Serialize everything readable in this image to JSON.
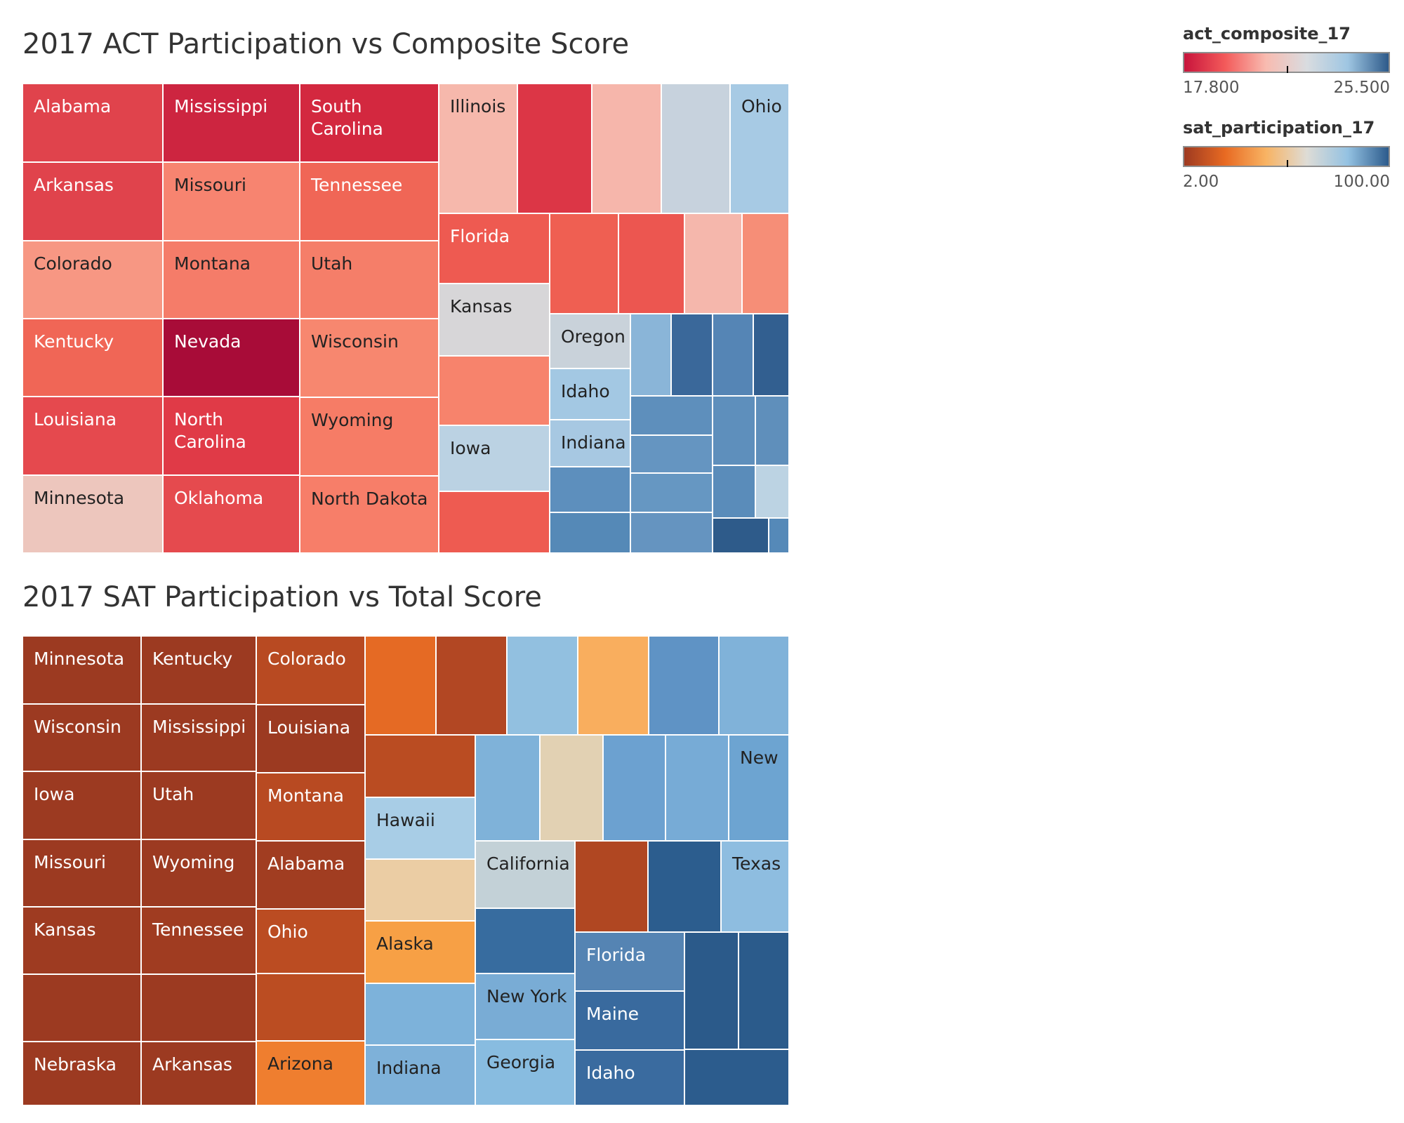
{
  "chart_data": [
    {
      "type": "treemap",
      "title": "2017 ACT Participation vs Composite Score",
      "size_field": "act_participation_17",
      "color_field": "act_composite_17",
      "tiles": [
        {
          "label": "Alabama",
          "color": "#e0434c"
        },
        {
          "label": "Arkansas",
          "color": "#e0434c"
        },
        {
          "label": "Colorado",
          "color": "#f79783"
        },
        {
          "label": "Kentucky",
          "color": "#f06656"
        },
        {
          "label": "Louisiana",
          "color": "#e5494e"
        },
        {
          "label": "Minnesota",
          "color": "#edc6bd"
        },
        {
          "label": "Mississippi",
          "color": "#cd2540"
        },
        {
          "label": "Missouri",
          "color": "#f78470"
        },
        {
          "label": "Montana",
          "color": "#f57c69"
        },
        {
          "label": "Nevada",
          "color": "#a80c38"
        },
        {
          "label": "North Carolina",
          "color": "#e03a47"
        },
        {
          "label": "Oklahoma",
          "color": "#e54a4e"
        },
        {
          "label": "South Carolina",
          "color": "#d3283f"
        },
        {
          "label": "Tennessee",
          "color": "#f06656"
        },
        {
          "label": "Utah",
          "color": "#f57e69"
        },
        {
          "label": "Wisconsin",
          "color": "#f7876f"
        },
        {
          "label": "Wyoming",
          "color": "#f67c66"
        },
        {
          "label": "North Dakota",
          "color": "#f77e69"
        },
        {
          "label": "Illinois",
          "color": "#f6b8ac"
        },
        {
          "label": "",
          "color": "#dc3646"
        },
        {
          "label": "",
          "color": "#f6b6ab"
        },
        {
          "label": "",
          "color": "#c7d2dd"
        },
        {
          "label": "Ohio",
          "color": "#a7cae4"
        },
        {
          "label": "Florida",
          "color": "#ee5a51"
        },
        {
          "label": "Kansas",
          "color": "#d7d6d8"
        },
        {
          "label": "",
          "color": "#f7836c"
        },
        {
          "label": "Iowa",
          "color": "#bbd2e3"
        },
        {
          "label": "",
          "color": "#ee5b51"
        },
        {
          "label": "",
          "color": "#ef5f52"
        },
        {
          "label": "",
          "color": "#ec5650"
        },
        {
          "label": "",
          "color": "#f5b7ac"
        },
        {
          "label": "",
          "color": "#f68e77"
        },
        {
          "label": "Oregon",
          "color": "#c9d2da"
        },
        {
          "label": "Idaho",
          "color": "#a3c8e3"
        },
        {
          "label": "Indiana",
          "color": "#a7c8e2"
        },
        {
          "label": "",
          "color": "#5d8fbd"
        },
        {
          "label": "",
          "color": "#5589b7"
        },
        {
          "label": "",
          "color": "#8ab5d8"
        },
        {
          "label": "",
          "color": "#3a689a"
        },
        {
          "label": "",
          "color": "#5585b5"
        },
        {
          "label": "",
          "color": "#325f90"
        },
        {
          "label": "",
          "color": "#5e8fbc"
        },
        {
          "label": "",
          "color": "#6595c1"
        },
        {
          "label": "",
          "color": "#6697c2"
        },
        {
          "label": "",
          "color": "#6594c0"
        },
        {
          "label": "",
          "color": "#5e8fbc"
        },
        {
          "label": "",
          "color": "#5f8fbb"
        },
        {
          "label": "",
          "color": "#5a8cba"
        },
        {
          "label": "",
          "color": "#bcd3e3"
        },
        {
          "label": "",
          "color": "#2e5b8a"
        },
        {
          "label": "",
          "color": "#5589b8"
        }
      ]
    },
    {
      "type": "treemap",
      "title": "2017 SAT Participation vs Total Score",
      "size_field": "sat_total_17",
      "color_field": "sat_participation_17",
      "tiles": [
        {
          "label": "Minnesota",
          "color": "#9c3a21"
        },
        {
          "label": "Wisconsin",
          "color": "#9c3a21"
        },
        {
          "label": "Iowa",
          "color": "#9c3a21"
        },
        {
          "label": "Missouri",
          "color": "#9c3a21"
        },
        {
          "label": "Kansas",
          "color": "#9e3b21"
        },
        {
          "label": "",
          "color": "#9c3a21"
        },
        {
          "label": "Nebraska",
          "color": "#9c3a21"
        },
        {
          "label": "Kentucky",
          "color": "#9c3a21"
        },
        {
          "label": "Mississippi",
          "color": "#9c3a21"
        },
        {
          "label": "Utah",
          "color": "#9c3a21"
        },
        {
          "label": "Wyoming",
          "color": "#9c3a21"
        },
        {
          "label": "Tennessee",
          "color": "#a03c21"
        },
        {
          "label": "",
          "color": "#9c3a21"
        },
        {
          "label": "Arkansas",
          "color": "#9c3a21"
        },
        {
          "label": "Colorado",
          "color": "#b84a22"
        },
        {
          "label": "Louisiana",
          "color": "#9c3a21"
        },
        {
          "label": "Montana",
          "color": "#b84a22"
        },
        {
          "label": "Alabama",
          "color": "#a13d21"
        },
        {
          "label": "Ohio",
          "color": "#bb4c22"
        },
        {
          "label": "",
          "color": "#bb4d22"
        },
        {
          "label": "Arizona",
          "color": "#ef7e2f"
        },
        {
          "label": "",
          "color": "#e56a24"
        },
        {
          "label": "",
          "color": "#b24723"
        },
        {
          "label": "",
          "color": "#92c0e0"
        },
        {
          "label": "",
          "color": "#f9ae5e"
        },
        {
          "label": "",
          "color": "#5f93c5"
        },
        {
          "label": "",
          "color": "#80b2d9"
        },
        {
          "label": "",
          "color": "#ba4c22"
        },
        {
          "label": "Hawaii",
          "color": "#a8cde6"
        },
        {
          "label": "",
          "color": "#ebcda4"
        },
        {
          "label": "Alaska",
          "color": "#f7a045"
        },
        {
          "label": "",
          "color": "#7db2da"
        },
        {
          "label": "Indiana",
          "color": "#7eb1d9"
        },
        {
          "label": "",
          "color": "#7fb2d9"
        },
        {
          "label": "",
          "color": "#e2d1b3"
        },
        {
          "label": "",
          "color": "#6ca1d0"
        },
        {
          "label": "",
          "color": "#77abd6"
        },
        {
          "label": "New",
          "color": "#6da4d1"
        },
        {
          "label": "California",
          "color": "#c3d1d7"
        },
        {
          "label": "",
          "color": "#b04722"
        },
        {
          "label": "",
          "color": "#2c5d8e"
        },
        {
          "label": "Texas",
          "color": "#8ebde0"
        },
        {
          "label": "",
          "color": "#376c9f"
        },
        {
          "label": "New York",
          "color": "#79acd5"
        },
        {
          "label": "Georgia",
          "color": "#88bce0"
        },
        {
          "label": "Florida",
          "color": "#5584b3"
        },
        {
          "label": "Maine",
          "color": "#396a9e"
        },
        {
          "label": "Idaho",
          "color": "#3a6b9f"
        },
        {
          "label": "",
          "color": "#2b5a8a"
        },
        {
          "label": "",
          "color": "#2b5b8b"
        },
        {
          "label": "",
          "color": "#2c5c8d"
        }
      ]
    }
  ],
  "legends": [
    {
      "title": "act_composite_17",
      "min_label": "17.800",
      "max_label": "25.500",
      "tick_fraction": 0.5,
      "gradient": [
        "#c8143c",
        "#f35a5a",
        "#f8bbb0",
        "#d9dce0",
        "#9fc6e2",
        "#2d5a8a"
      ]
    },
    {
      "title": "sat_participation_17",
      "min_label": "2.00",
      "max_label": "100.00",
      "tick_fraction": 0.5,
      "gradient": [
        "#9e3a21",
        "#e86a22",
        "#f8b363",
        "#dedcd6",
        "#94c2e2",
        "#2c5b8c"
      ]
    }
  ]
}
